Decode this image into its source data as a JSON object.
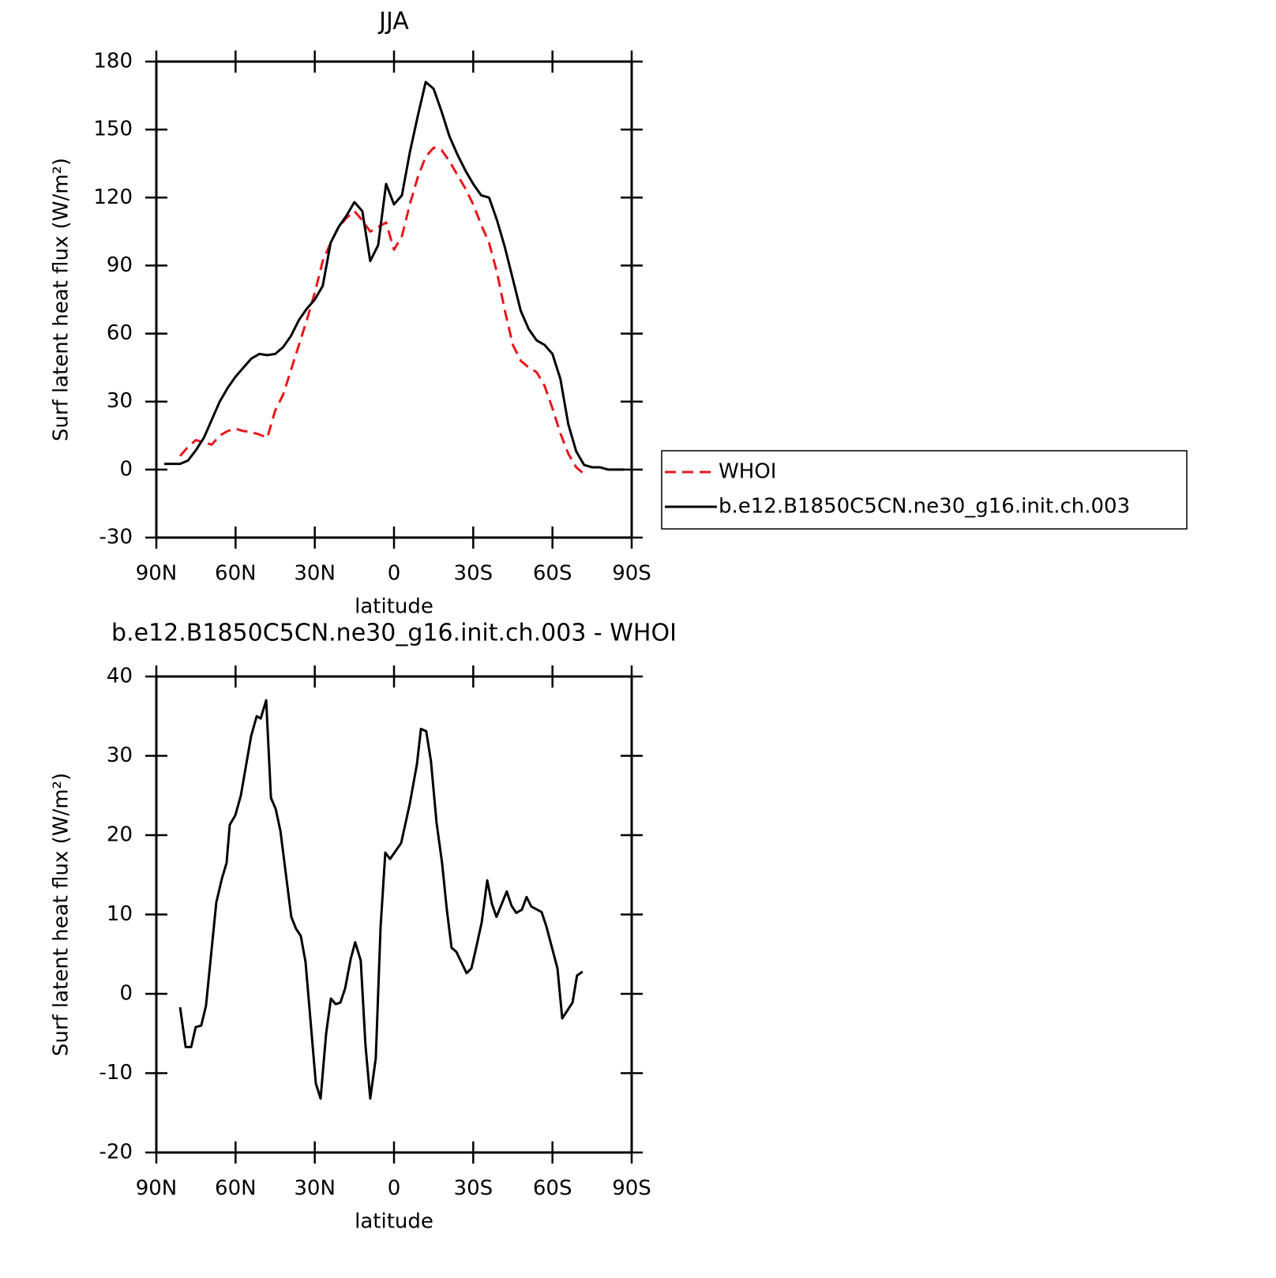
{
  "chart_data": [
    {
      "type": "line",
      "title": "JJA",
      "xlabel": "latitude",
      "ylabel": "Surf latent heat flux (W/m²)",
      "x": [
        87,
        84,
        81,
        78,
        75,
        72,
        69,
        66,
        63,
        60,
        57,
        54,
        51,
        48,
        45,
        42,
        39,
        36,
        33,
        30,
        27,
        24,
        21,
        18,
        15,
        12,
        9,
        6,
        3,
        0,
        -3,
        -6,
        -9,
        -12,
        -15,
        -18,
        -21,
        -24,
        -27,
        -30,
        -33,
        -36,
        -39,
        -42,
        -45,
        -48,
        -51,
        -54,
        -57,
        -60,
        -63,
        -66,
        -69,
        -72,
        -75,
        -78,
        -81,
        -84,
        -87
      ],
      "series": [
        {
          "name": "WHOI",
          "color": "#e8161b",
          "line_style": "dashed",
          "values": [
            null,
            null,
            6,
            10,
            13,
            12,
            11,
            15,
            17,
            18,
            17,
            16.5,
            15.5,
            14,
            26,
            33,
            44,
            55,
            66,
            78,
            92,
            100,
            107,
            111,
            114,
            110,
            105,
            107,
            109,
            97,
            103,
            117,
            129,
            138,
            142,
            141,
            136,
            130,
            124,
            117,
            108,
            100,
            87,
            70,
            55,
            48,
            45,
            43,
            37,
            27,
            16,
            7,
            1,
            -2,
            null,
            null,
            null,
            null,
            null
          ]
        },
        {
          "name": "b.e12.B1850C5CN.ne30_g16.init.ch.003",
          "color": "#000000",
          "line_style": "solid",
          "values": [
            2.5,
            2.5,
            2.5,
            4,
            8.6,
            14,
            22,
            30,
            36,
            41,
            45,
            49,
            51,
            50.5,
            51,
            54,
            59,
            66,
            71,
            75,
            81,
            100,
            107,
            112,
            118,
            114,
            92,
            99,
            126,
            117,
            121,
            140,
            156,
            171,
            168,
            158,
            147,
            139,
            132,
            126,
            121,
            120,
            110,
            98,
            84,
            70,
            62,
            57,
            55,
            51,
            40,
            20,
            8,
            2,
            1,
            1,
            0,
            0,
            0
          ]
        }
      ],
      "xlim": [
        90,
        -90
      ],
      "xticks": [
        {
          "value": 90,
          "label": "90N"
        },
        {
          "value": 60,
          "label": "60N"
        },
        {
          "value": 30,
          "label": "30N"
        },
        0,
        {
          "value": -30,
          "label": "30S"
        },
        {
          "value": -60,
          "label": "60S"
        },
        {
          "value": -90,
          "label": "90S"
        }
      ],
      "ylim": [
        -30,
        180
      ],
      "yticks": [
        -30,
        0,
        30,
        60,
        90,
        120,
        150,
        180
      ],
      "legend": "right"
    },
    {
      "type": "line",
      "title": "b.e12.B1850C5CN.ne30_g16.init.ch.003 - WHOI",
      "xlabel": "latitude",
      "ylabel": "Surf latent heat flux (W/m²)",
      "x": [
        81,
        78.9,
        76.8,
        75.1,
        73,
        71.2,
        67.3,
        65.2,
        63.4,
        62.2,
        60.1,
        58,
        54.1,
        52,
        50.5,
        48.4,
        46.6,
        44.8,
        43,
        38.9,
        37.1,
        35.3,
        33.5,
        29.6,
        27.8,
        25.7,
        23.9,
        22.1,
        20.3,
        18.5,
        16.4,
        14.7,
        12.6,
        10.8,
        9,
        6.9,
        5.1,
        3.3,
        1.5,
        -2.7,
        -6,
        -8.7,
        -10.2,
        -12.2,
        -14,
        -16.1,
        -18.2,
        -20,
        -21.8,
        -23.6,
        -27.5,
        -29.3,
        -31.1,
        -33.2,
        -35.3,
        -37.1,
        -38.8,
        -42.7,
        -44.5,
        -46.3,
        -48.4,
        -50.2,
        -52,
        -55.9,
        -57.7,
        -61.9,
        -63.7,
        -67.6,
        -69.3,
        -71.4
      ],
      "values": [
        -1.7,
        -6.7,
        -6.7,
        -4.2,
        -4,
        -1.5,
        11.5,
        14.5,
        16.5,
        21.3,
        22.5,
        25,
        32.5,
        35,
        34.7,
        37,
        24.7,
        23.3,
        20.5,
        9.7,
        8.2,
        7.3,
        4,
        -11.3,
        -13.2,
        -5,
        -0.6,
        -1.3,
        -1.1,
        0.7,
        4.4,
        6.5,
        4.2,
        -6.5,
        -13.2,
        -8.1,
        8.3,
        17.8,
        17,
        19,
        24,
        29,
        33.4,
        33.1,
        29.3,
        21.6,
        16.5,
        10.6,
        5.8,
        5.3,
        2.6,
        3.2,
        5.8,
        9,
        14.3,
        11.3,
        9.7,
        12.9,
        11.1,
        10.2,
        10.6,
        12.2,
        11,
        10.3,
        8.5,
        3.2,
        -3.1,
        -1.1,
        2.3,
        2.8
      ],
      "color": "#000000",
      "xlim": [
        90,
        -90
      ],
      "xticks": [
        {
          "value": 90,
          "label": "90N"
        },
        {
          "value": 60,
          "label": "60N"
        },
        {
          "value": 30,
          "label": "30N"
        },
        0,
        {
          "value": -30,
          "label": "30S"
        },
        {
          "value": -60,
          "label": "60S"
        },
        {
          "value": -90,
          "label": "90S"
        }
      ],
      "ylim": [
        -20,
        40
      ],
      "yticks": [
        -20,
        -10,
        0,
        10,
        20,
        30,
        40
      ]
    }
  ]
}
